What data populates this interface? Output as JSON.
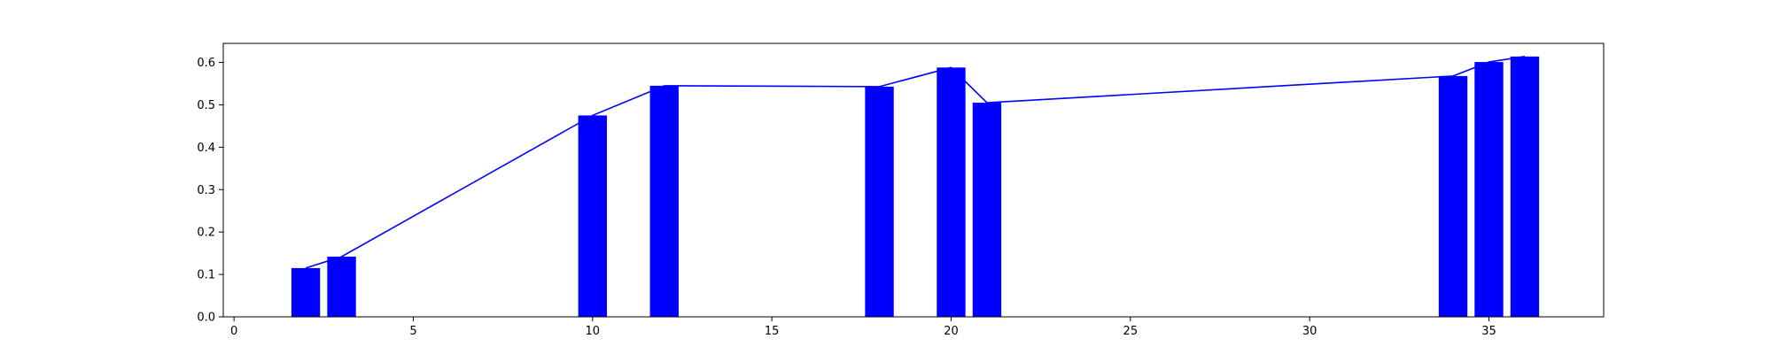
{
  "chart_data": {
    "type": "bar",
    "title": "",
    "xlabel": "",
    "ylabel": "",
    "xlim": [
      -0.3,
      38.2
    ],
    "ylim": [
      0,
      0.645
    ],
    "grid": false,
    "bar_width": 0.8,
    "bar_color": "#0000ff",
    "line_color": "#0000ff",
    "x": [
      2,
      3,
      10,
      12,
      18,
      20,
      21,
      34,
      35,
      36
    ],
    "values": [
      0.115,
      0.142,
      0.475,
      0.545,
      0.543,
      0.588,
      0.505,
      0.568,
      0.601,
      0.614
    ],
    "line": {
      "x": [
        2,
        3,
        10,
        12,
        18,
        20,
        21,
        34,
        35,
        36
      ],
      "y": [
        0.115,
        0.142,
        0.475,
        0.545,
        0.543,
        0.588,
        0.505,
        0.568,
        0.601,
        0.614
      ]
    },
    "xticks": [
      "0",
      "5",
      "10",
      "15",
      "20",
      "25",
      "30",
      "35"
    ],
    "yticks": [
      "0.0",
      "0.1",
      "0.2",
      "0.3",
      "0.4",
      "0.5",
      "0.6"
    ]
  }
}
